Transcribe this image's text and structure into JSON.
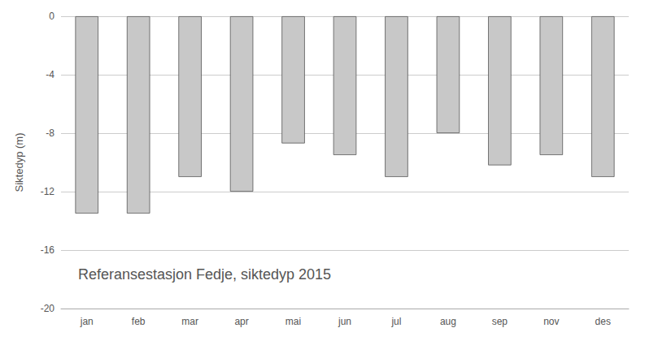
{
  "chart_data": {
    "type": "bar",
    "categories": [
      "jan",
      "feb",
      "mar",
      "apr",
      "mai",
      "jun",
      "jul",
      "aug",
      "sep",
      "nov",
      "des"
    ],
    "values": [
      -13.5,
      -13.5,
      -11.0,
      -12.0,
      -8.7,
      -9.5,
      -11.0,
      -8.0,
      -10.2,
      -9.5,
      -11.0
    ],
    "color": "#c8c8c8",
    "ylabel": "Siktedyp (m)",
    "annotation": "Referansestasjon Fedje, siktedyp 2015",
    "ylim": [
      -20,
      0
    ],
    "yticks": [
      0,
      -4,
      -8,
      -12,
      -16,
      -20
    ],
    "grid": true
  }
}
